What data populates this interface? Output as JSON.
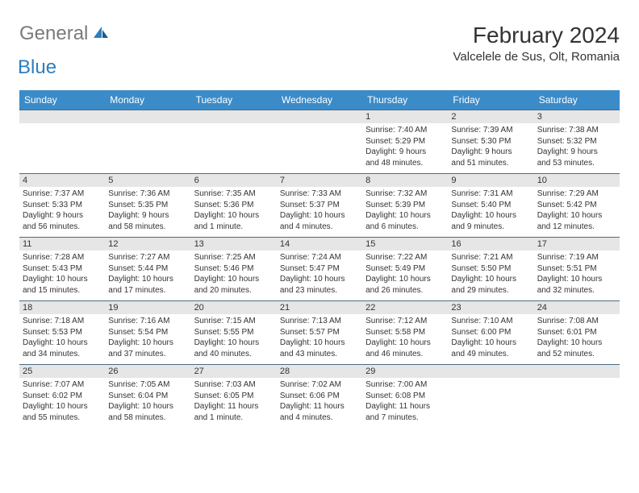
{
  "logo": {
    "general": "General",
    "blue": "Blue"
  },
  "title": "February 2024",
  "location": "Valcelele de Sus, Olt, Romania",
  "colors": {
    "header_bg": "#3b8bc8",
    "header_text": "#ffffff",
    "daynum_bg": "#e6e6e6",
    "border": "#4a6d87",
    "text": "#333333",
    "logo_gray": "#7a7a7a",
    "logo_blue": "#2d7ec0"
  },
  "daynames": [
    "Sunday",
    "Monday",
    "Tuesday",
    "Wednesday",
    "Thursday",
    "Friday",
    "Saturday"
  ],
  "weeks": [
    [
      null,
      null,
      null,
      null,
      {
        "n": "1",
        "sr": "Sunrise: 7:40 AM",
        "ss": "Sunset: 5:29 PM",
        "d1": "Daylight: 9 hours",
        "d2": "and 48 minutes."
      },
      {
        "n": "2",
        "sr": "Sunrise: 7:39 AM",
        "ss": "Sunset: 5:30 PM",
        "d1": "Daylight: 9 hours",
        "d2": "and 51 minutes."
      },
      {
        "n": "3",
        "sr": "Sunrise: 7:38 AM",
        "ss": "Sunset: 5:32 PM",
        "d1": "Daylight: 9 hours",
        "d2": "and 53 minutes."
      }
    ],
    [
      {
        "n": "4",
        "sr": "Sunrise: 7:37 AM",
        "ss": "Sunset: 5:33 PM",
        "d1": "Daylight: 9 hours",
        "d2": "and 56 minutes."
      },
      {
        "n": "5",
        "sr": "Sunrise: 7:36 AM",
        "ss": "Sunset: 5:35 PM",
        "d1": "Daylight: 9 hours",
        "d2": "and 58 minutes."
      },
      {
        "n": "6",
        "sr": "Sunrise: 7:35 AM",
        "ss": "Sunset: 5:36 PM",
        "d1": "Daylight: 10 hours",
        "d2": "and 1 minute."
      },
      {
        "n": "7",
        "sr": "Sunrise: 7:33 AM",
        "ss": "Sunset: 5:37 PM",
        "d1": "Daylight: 10 hours",
        "d2": "and 4 minutes."
      },
      {
        "n": "8",
        "sr": "Sunrise: 7:32 AM",
        "ss": "Sunset: 5:39 PM",
        "d1": "Daylight: 10 hours",
        "d2": "and 6 minutes."
      },
      {
        "n": "9",
        "sr": "Sunrise: 7:31 AM",
        "ss": "Sunset: 5:40 PM",
        "d1": "Daylight: 10 hours",
        "d2": "and 9 minutes."
      },
      {
        "n": "10",
        "sr": "Sunrise: 7:29 AM",
        "ss": "Sunset: 5:42 PM",
        "d1": "Daylight: 10 hours",
        "d2": "and 12 minutes."
      }
    ],
    [
      {
        "n": "11",
        "sr": "Sunrise: 7:28 AM",
        "ss": "Sunset: 5:43 PM",
        "d1": "Daylight: 10 hours",
        "d2": "and 15 minutes."
      },
      {
        "n": "12",
        "sr": "Sunrise: 7:27 AM",
        "ss": "Sunset: 5:44 PM",
        "d1": "Daylight: 10 hours",
        "d2": "and 17 minutes."
      },
      {
        "n": "13",
        "sr": "Sunrise: 7:25 AM",
        "ss": "Sunset: 5:46 PM",
        "d1": "Daylight: 10 hours",
        "d2": "and 20 minutes."
      },
      {
        "n": "14",
        "sr": "Sunrise: 7:24 AM",
        "ss": "Sunset: 5:47 PM",
        "d1": "Daylight: 10 hours",
        "d2": "and 23 minutes."
      },
      {
        "n": "15",
        "sr": "Sunrise: 7:22 AM",
        "ss": "Sunset: 5:49 PM",
        "d1": "Daylight: 10 hours",
        "d2": "and 26 minutes."
      },
      {
        "n": "16",
        "sr": "Sunrise: 7:21 AM",
        "ss": "Sunset: 5:50 PM",
        "d1": "Daylight: 10 hours",
        "d2": "and 29 minutes."
      },
      {
        "n": "17",
        "sr": "Sunrise: 7:19 AM",
        "ss": "Sunset: 5:51 PM",
        "d1": "Daylight: 10 hours",
        "d2": "and 32 minutes."
      }
    ],
    [
      {
        "n": "18",
        "sr": "Sunrise: 7:18 AM",
        "ss": "Sunset: 5:53 PM",
        "d1": "Daylight: 10 hours",
        "d2": "and 34 minutes."
      },
      {
        "n": "19",
        "sr": "Sunrise: 7:16 AM",
        "ss": "Sunset: 5:54 PM",
        "d1": "Daylight: 10 hours",
        "d2": "and 37 minutes."
      },
      {
        "n": "20",
        "sr": "Sunrise: 7:15 AM",
        "ss": "Sunset: 5:55 PM",
        "d1": "Daylight: 10 hours",
        "d2": "and 40 minutes."
      },
      {
        "n": "21",
        "sr": "Sunrise: 7:13 AM",
        "ss": "Sunset: 5:57 PM",
        "d1": "Daylight: 10 hours",
        "d2": "and 43 minutes."
      },
      {
        "n": "22",
        "sr": "Sunrise: 7:12 AM",
        "ss": "Sunset: 5:58 PM",
        "d1": "Daylight: 10 hours",
        "d2": "and 46 minutes."
      },
      {
        "n": "23",
        "sr": "Sunrise: 7:10 AM",
        "ss": "Sunset: 6:00 PM",
        "d1": "Daylight: 10 hours",
        "d2": "and 49 minutes."
      },
      {
        "n": "24",
        "sr": "Sunrise: 7:08 AM",
        "ss": "Sunset: 6:01 PM",
        "d1": "Daylight: 10 hours",
        "d2": "and 52 minutes."
      }
    ],
    [
      {
        "n": "25",
        "sr": "Sunrise: 7:07 AM",
        "ss": "Sunset: 6:02 PM",
        "d1": "Daylight: 10 hours",
        "d2": "and 55 minutes."
      },
      {
        "n": "26",
        "sr": "Sunrise: 7:05 AM",
        "ss": "Sunset: 6:04 PM",
        "d1": "Daylight: 10 hours",
        "d2": "and 58 minutes."
      },
      {
        "n": "27",
        "sr": "Sunrise: 7:03 AM",
        "ss": "Sunset: 6:05 PM",
        "d1": "Daylight: 11 hours",
        "d2": "and 1 minute."
      },
      {
        "n": "28",
        "sr": "Sunrise: 7:02 AM",
        "ss": "Sunset: 6:06 PM",
        "d1": "Daylight: 11 hours",
        "d2": "and 4 minutes."
      },
      {
        "n": "29",
        "sr": "Sunrise: 7:00 AM",
        "ss": "Sunset: 6:08 PM",
        "d1": "Daylight: 11 hours",
        "d2": "and 7 minutes."
      },
      null,
      null
    ]
  ]
}
